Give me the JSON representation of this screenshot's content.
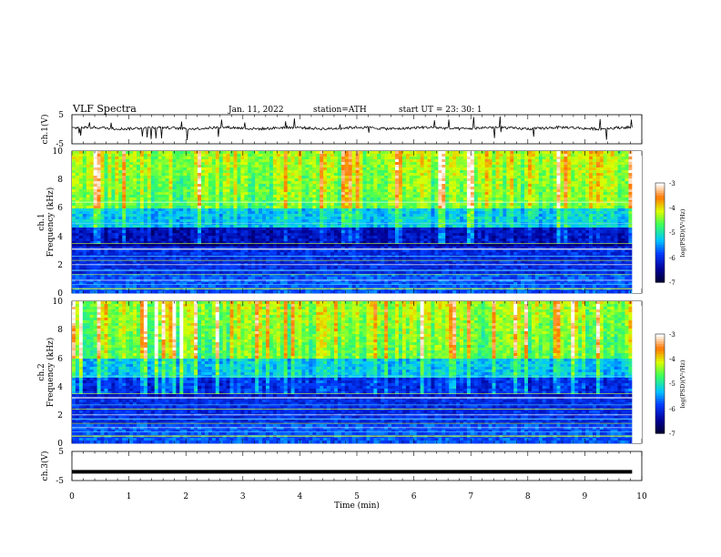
{
  "header": {
    "title": "VLF  Spectra",
    "date": "Jan.  11,  2022",
    "station": "station=ATH",
    "start": "start  UT  =   23: 30: 1"
  },
  "chart_data": [
    {
      "type": "line",
      "panel": "ch1-waveform",
      "ylabel": "ch.1(V)",
      "ylim": [
        -5,
        5
      ],
      "y_ticks": [
        "5",
        "-5"
      ],
      "xlim": [
        0,
        10
      ],
      "x_end": 9.83,
      "baseline": 0.4,
      "note_values": "noisy waveform around ~0.4 V with spikes"
    },
    {
      "type": "heatmap",
      "panel": "ch1-spectrogram",
      "ylabel": "Frequency  (kHz)",
      "channel_label": "ch.1",
      "ylim": [
        0,
        10
      ],
      "y_ticks": [
        "0",
        "2",
        "4",
        "6",
        "8",
        "10"
      ],
      "xlim": [
        0,
        10
      ],
      "x_end": 9.83,
      "colorbar": {
        "label": "log(PSD)(V²/Hz)",
        "range": [
          -7,
          -3
        ],
        "ticks": [
          "-3",
          "-4",
          "-5",
          "-6",
          "-7"
        ]
      }
    },
    {
      "type": "heatmap",
      "panel": "ch2-spectrogram",
      "ylabel": "Frequency  (kHz)",
      "channel_label": "ch.2",
      "ylim": [
        0,
        10
      ],
      "y_ticks": [
        "0",
        "2",
        "4",
        "6",
        "8",
        "10"
      ],
      "xlim": [
        0,
        10
      ],
      "x_end": 9.83,
      "colorbar": {
        "label": "log(PSD)(V²/Hz)",
        "range": [
          -7,
          -3
        ],
        "ticks": [
          "-3",
          "-4",
          "-5",
          "-6",
          "-7"
        ]
      }
    },
    {
      "type": "line",
      "panel": "ch3-waveform",
      "ylabel": "ch.3(V)",
      "ylim": [
        -5,
        5
      ],
      "y_ticks": [
        "5",
        "-5"
      ],
      "xlim": [
        0,
        10
      ],
      "x_end": 9.83,
      "baseline": -2.0
    }
  ],
  "xaxis": {
    "label": "Time  (min)",
    "ticks": [
      "0",
      "1",
      "2",
      "3",
      "4",
      "5",
      "6",
      "7",
      "8",
      "9",
      "10"
    ]
  },
  "colors": {
    "low": "#00008b",
    "mid_low": "#0050ff",
    "mid": "#00d8ff",
    "mid_high": "#40ff40",
    "high": "#ffff00",
    "top": "#ff0000"
  }
}
